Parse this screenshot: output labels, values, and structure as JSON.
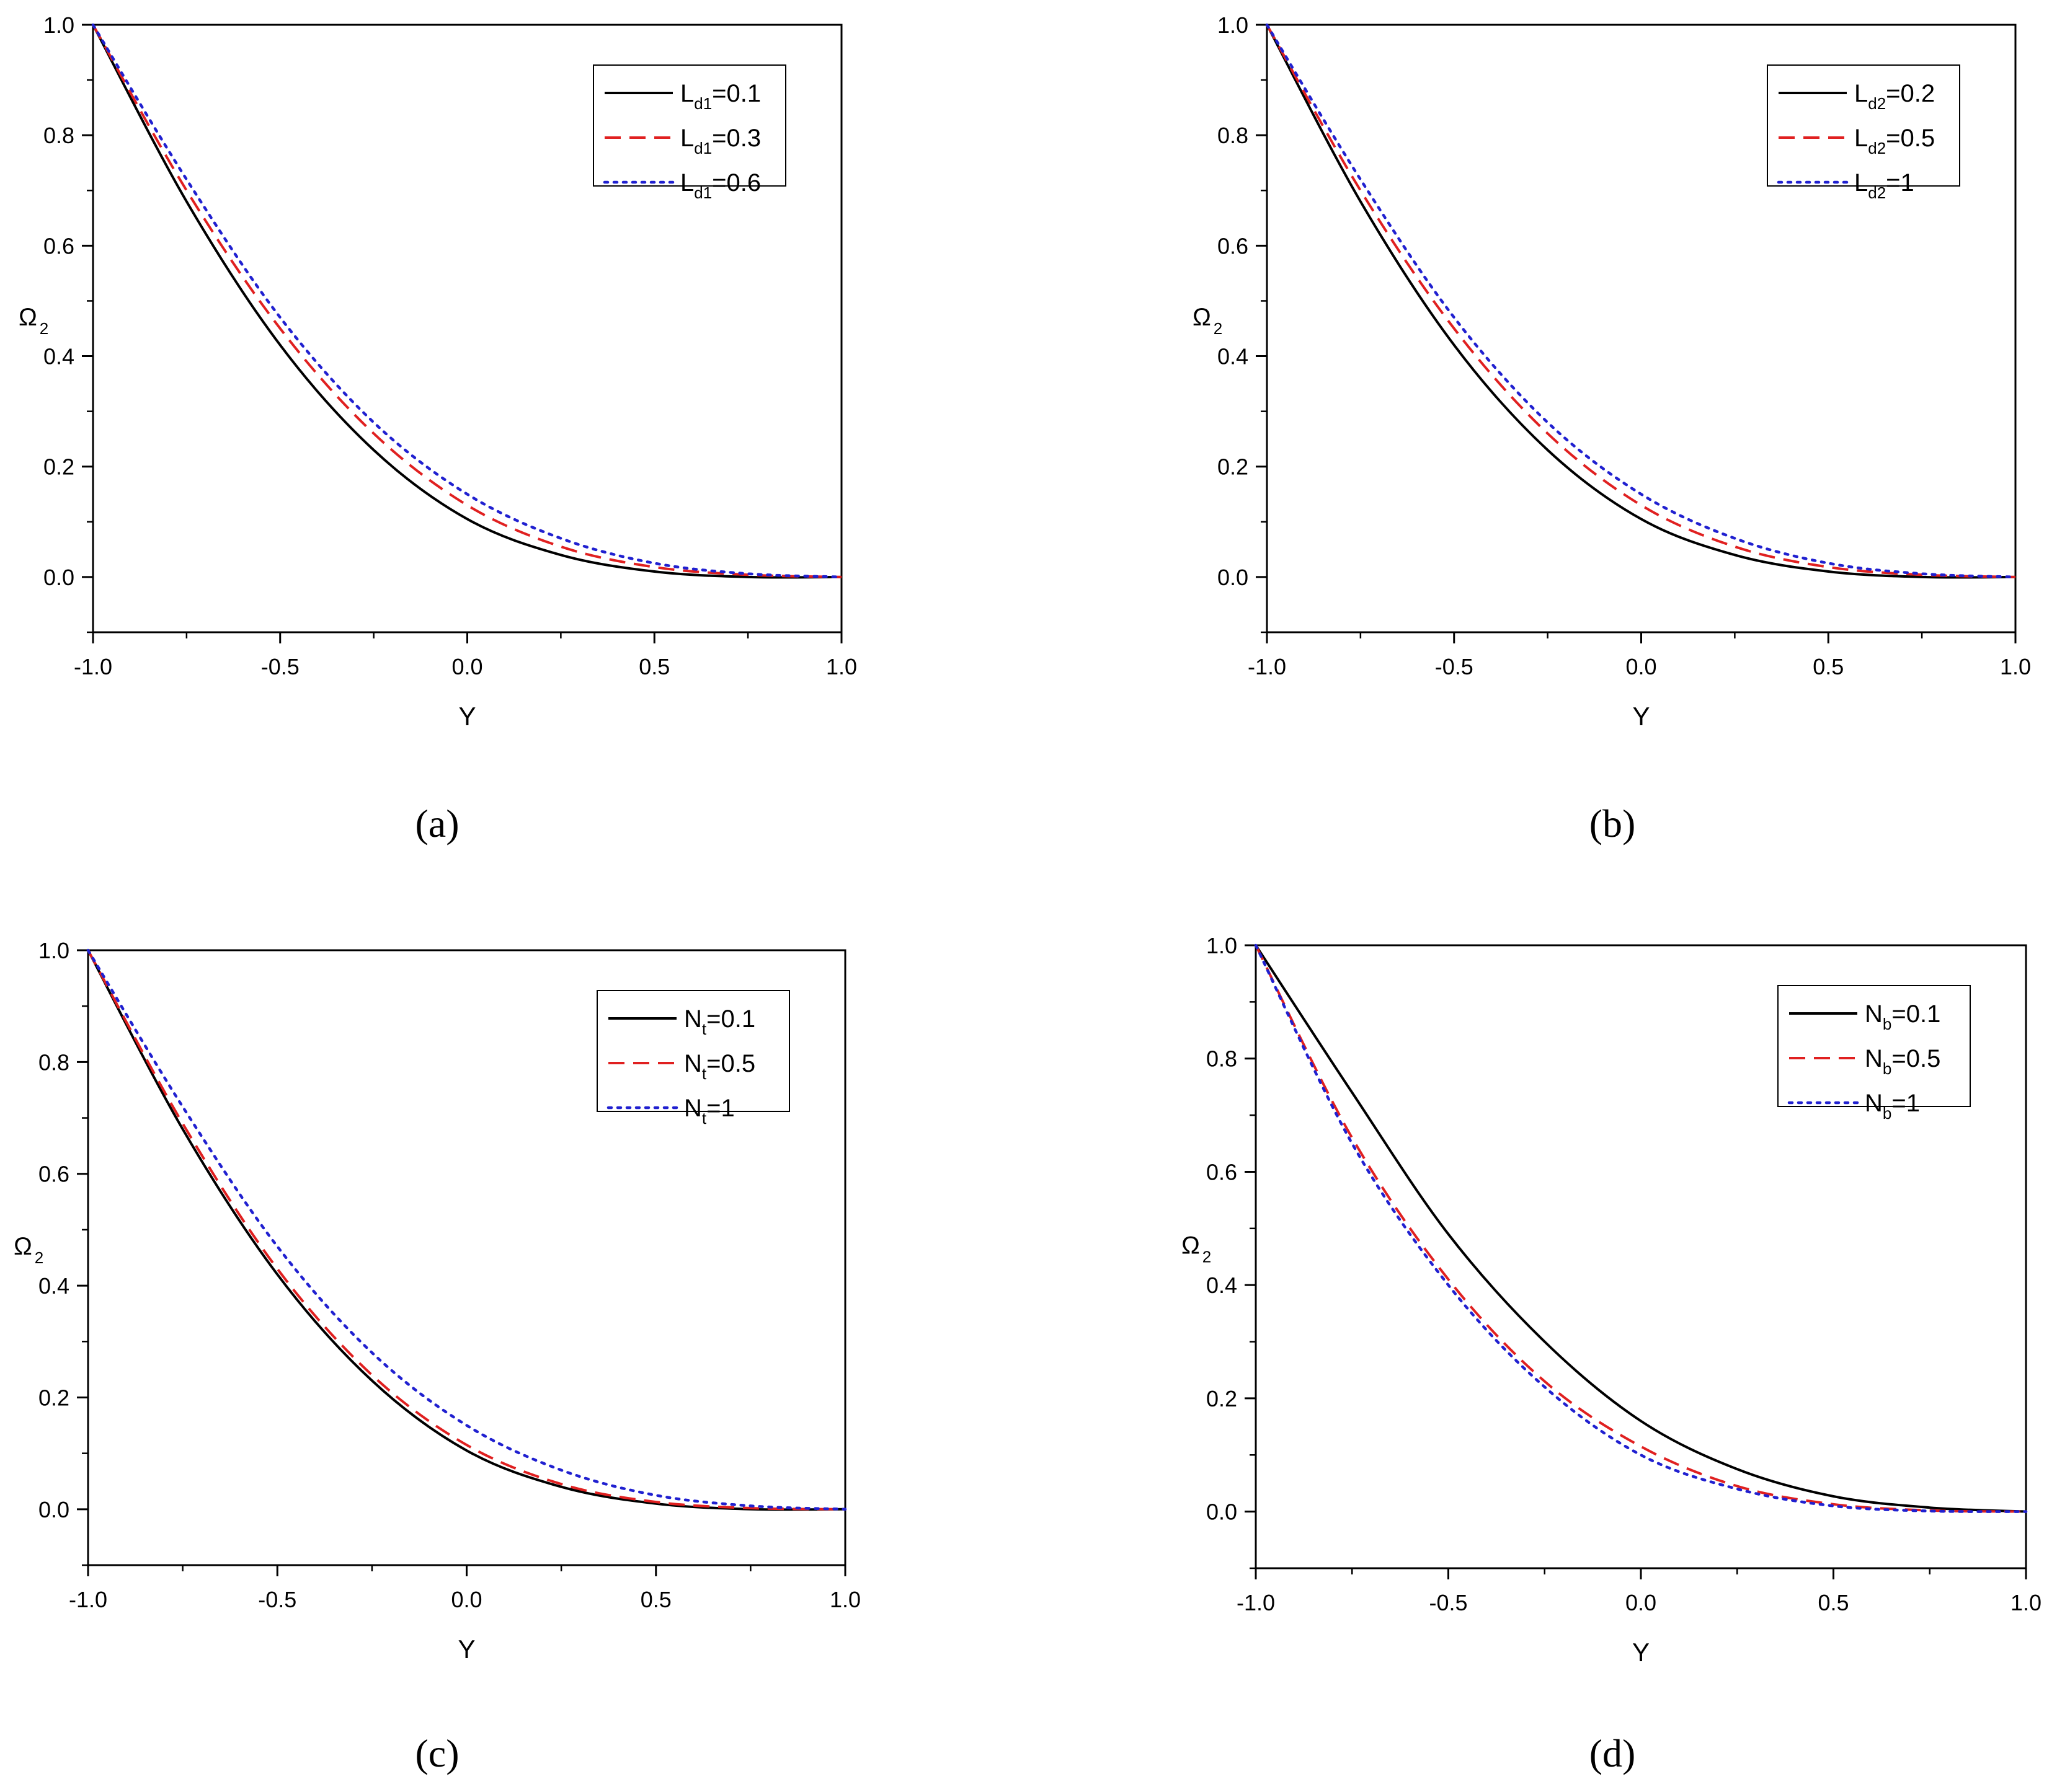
{
  "figure": {
    "captions": [
      "(a)",
      "(b)",
      "(c)",
      "(d)"
    ]
  },
  "colors": {
    "axis": "#000000",
    "background": "#ffffff",
    "series": [
      "#000000",
      "#e02020",
      "#2020d0"
    ]
  },
  "chart_data": [
    {
      "id": "a",
      "type": "line",
      "caption": "(a)",
      "xlabel": "Y",
      "ylabel": "Ω",
      "ylabel_sub": "2",
      "xlim": [
        -1.0,
        1.0
      ],
      "ylim": [
        -0.1,
        1.0
      ],
      "xticks": [
        "-1.0",
        "-0.5",
        "0.0",
        "0.5",
        "1.0"
      ],
      "yticks": [
        "0.0",
        "0.2",
        "0.4",
        "0.6",
        "0.8",
        "1.0"
      ],
      "legend_position": "top-right",
      "x": [
        -1.0,
        -0.75,
        -0.5,
        -0.25,
        0.0,
        0.25,
        0.5,
        0.75,
        1.0
      ],
      "series": [
        {
          "name": "L",
          "sub": "d1",
          "label_suffix": "=0.1",
          "style": "solid",
          "values": [
            1.0,
            0.68,
            0.42,
            0.23,
            0.105,
            0.04,
            0.01,
            0.0,
            0.0
          ]
        },
        {
          "name": "L",
          "sub": "d1",
          "label_suffix": "=0.3",
          "style": "dashed",
          "values": [
            1.0,
            0.7,
            0.45,
            0.26,
            0.13,
            0.055,
            0.018,
            0.004,
            0.0
          ]
        },
        {
          "name": "L",
          "sub": "d1",
          "label_suffix": "=0.6",
          "style": "dotted",
          "values": [
            1.0,
            0.72,
            0.47,
            0.28,
            0.15,
            0.07,
            0.025,
            0.006,
            0.0
          ]
        }
      ]
    },
    {
      "id": "b",
      "type": "line",
      "caption": "(b)",
      "xlabel": "Y",
      "ylabel": "Ω",
      "ylabel_sub": "2",
      "xlim": [
        -1.0,
        1.0
      ],
      "ylim": [
        -0.1,
        1.0
      ],
      "xticks": [
        "-1.0",
        "-0.5",
        "0.0",
        "0.5",
        "1.0"
      ],
      "yticks": [
        "0.0",
        "0.2",
        "0.4",
        "0.6",
        "0.8",
        "1.0"
      ],
      "legend_position": "top-right",
      "x": [
        -1.0,
        -0.75,
        -0.5,
        -0.25,
        0.0,
        0.25,
        0.5,
        0.75,
        1.0
      ],
      "series": [
        {
          "name": "L",
          "sub": "d2",
          "label_suffix": "=0.2",
          "style": "solid",
          "values": [
            1.0,
            0.68,
            0.42,
            0.23,
            0.105,
            0.04,
            0.01,
            0.0,
            0.0
          ]
        },
        {
          "name": "L",
          "sub": "d2",
          "label_suffix": "=0.5",
          "style": "dashed",
          "values": [
            1.0,
            0.7,
            0.45,
            0.26,
            0.13,
            0.055,
            0.018,
            0.004,
            0.0
          ]
        },
        {
          "name": "L",
          "sub": "d2",
          "label_suffix": "=1",
          "style": "dotted",
          "values": [
            1.0,
            0.72,
            0.47,
            0.28,
            0.15,
            0.07,
            0.025,
            0.006,
            0.0
          ]
        }
      ]
    },
    {
      "id": "c",
      "type": "line",
      "caption": "(c)",
      "xlabel": "Y",
      "ylabel": "Ω",
      "ylabel_sub": "2",
      "xlim": [
        -1.0,
        1.0
      ],
      "ylim": [
        -0.1,
        1.0
      ],
      "xticks": [
        "-1.0",
        "-0.5",
        "0.0",
        "0.5",
        "1.0"
      ],
      "yticks": [
        "0.0",
        "0.2",
        "0.4",
        "0.6",
        "0.8",
        "1.0"
      ],
      "legend_position": "top-right",
      "x": [
        -1.0,
        -0.75,
        -0.5,
        -0.25,
        0.0,
        0.25,
        0.5,
        0.75,
        1.0
      ],
      "series": [
        {
          "name": "N",
          "sub": "t",
          "label_suffix": "=0.1",
          "style": "solid",
          "values": [
            1.0,
            0.68,
            0.42,
            0.23,
            0.105,
            0.04,
            0.01,
            0.0,
            0.0
          ]
        },
        {
          "name": "N",
          "sub": "t",
          "label_suffix": "=0.5",
          "style": "dashed",
          "values": [
            1.0,
            0.69,
            0.43,
            0.24,
            0.115,
            0.045,
            0.013,
            0.002,
            0.0
          ]
        },
        {
          "name": "N",
          "sub": "t",
          "label_suffix": "=1",
          "style": "dotted",
          "values": [
            1.0,
            0.72,
            0.47,
            0.28,
            0.15,
            0.07,
            0.025,
            0.006,
            0.0
          ]
        }
      ]
    },
    {
      "id": "d",
      "type": "line",
      "caption": "(d)",
      "xlabel": "Y",
      "ylabel": "Ω",
      "ylabel_sub": "2",
      "xlim": [
        -1.0,
        1.0
      ],
      "ylim": [
        -0.1,
        1.0
      ],
      "xticks": [
        "-1.0",
        "-0.5",
        "0.0",
        "0.5",
        "1.0"
      ],
      "yticks": [
        "0.0",
        "0.2",
        "0.4",
        "0.6",
        "0.8",
        "1.0"
      ],
      "legend_position": "top-right",
      "x": [
        -1.0,
        -0.75,
        -0.5,
        -0.25,
        0.0,
        0.25,
        0.5,
        0.75,
        1.0
      ],
      "series": [
        {
          "name": "N",
          "sub": "b",
          "label_suffix": "=0.1",
          "style": "solid",
          "values": [
            1.0,
            0.74,
            0.49,
            0.3,
            0.16,
            0.075,
            0.027,
            0.007,
            0.0
          ]
        },
        {
          "name": "N",
          "sub": "b",
          "label_suffix": "=0.5",
          "style": "dashed",
          "values": [
            1.0,
            0.66,
            0.41,
            0.23,
            0.115,
            0.045,
            0.013,
            0.002,
            0.0
          ]
        },
        {
          "name": "N",
          "sub": "b",
          "label_suffix": "=1",
          "style": "dotted",
          "values": [
            1.0,
            0.65,
            0.4,
            0.22,
            0.1,
            0.04,
            0.01,
            0.001,
            0.0
          ]
        }
      ]
    }
  ]
}
